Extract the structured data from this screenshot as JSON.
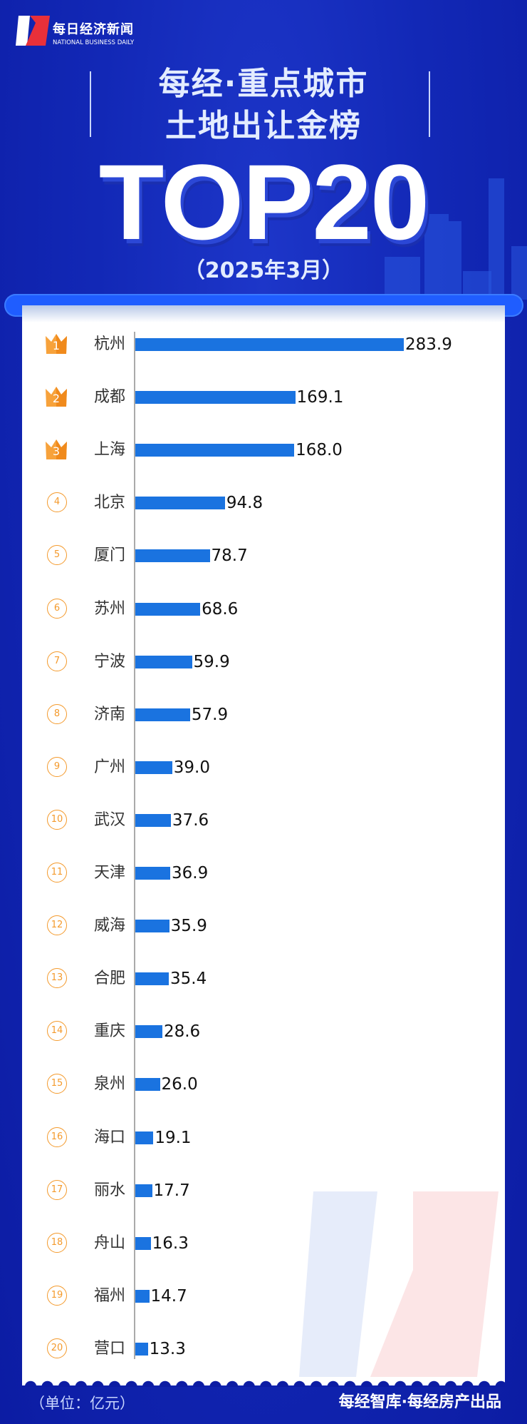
{
  "header": {
    "logo_cn": "每日经济新闻",
    "logo_en": "NATIONAL BUSINESS DAILY",
    "title_line1": "每经·重点城市",
    "title_line2": "土地出让金榜",
    "headline": "TOP20",
    "period": "（2025年3月）"
  },
  "footer": {
    "unit": "（单位：亿元）",
    "credit": "每经智库·每经房产出品"
  },
  "colors": {
    "background": "#0c1ca3",
    "bar": "#1a73e0",
    "rank": "#f49a2c"
  },
  "chart_data": {
    "type": "bar",
    "orientation": "horizontal",
    "unit": "亿元",
    "ranks": [
      "1",
      "2",
      "3",
      "4",
      "5",
      "6",
      "7",
      "8",
      "9",
      "10",
      "11",
      "12",
      "13",
      "14",
      "15",
      "16",
      "17",
      "18",
      "19",
      "20"
    ],
    "categories": [
      "杭州",
      "成都",
      "上海",
      "北京",
      "厦门",
      "苏州",
      "宁波",
      "济南",
      "广州",
      "武汉",
      "天津",
      "威海",
      "合肥",
      "重庆",
      "泉州",
      "海口",
      "丽水",
      "舟山",
      "福州",
      "营口"
    ],
    "values": [
      283.9,
      169.1,
      168.0,
      94.8,
      78.7,
      68.6,
      59.9,
      57.9,
      39.0,
      37.6,
      36.9,
      35.9,
      35.4,
      28.6,
      26.0,
      19.1,
      17.7,
      16.3,
      14.7,
      13.3
    ],
    "value_labels": [
      "283.9",
      "169.1",
      "168.0",
      "94.8",
      "78.7",
      "68.6",
      "59.9",
      "57.9",
      "39.0",
      "37.6",
      "36.9",
      "35.9",
      "35.4",
      "28.6",
      "26.0",
      "19.1",
      "17.7",
      "16.3",
      "14.7",
      "13.3"
    ],
    "grid": false,
    "legend": "none"
  }
}
